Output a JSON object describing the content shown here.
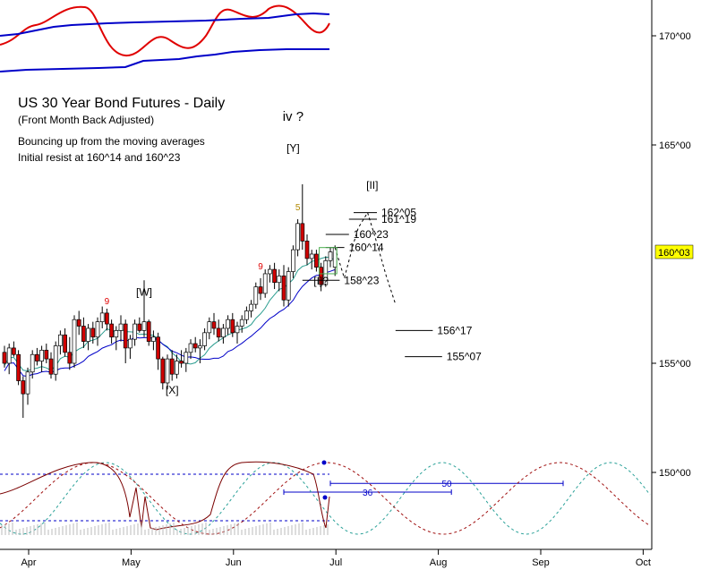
{
  "chart_data": {
    "type": "candlestick",
    "title": "US 30 Year Bond Futures - Daily",
    "subtitle": "(Front Month Back Adjusted)",
    "notes": [
      "Bouncing up from the moving averages",
      "Initial resist at 160^14 and 160^23"
    ],
    "y_axis": {
      "labels": [
        "170^00",
        "165^00",
        "155^00",
        "150^00"
      ],
      "values": [
        170,
        165,
        155,
        150
      ],
      "current_price_label": "160^03",
      "current_price": 160.09
    },
    "x_axis": {
      "labels": [
        "Apr",
        "May",
        "Jun",
        "Jul",
        "Aug",
        "Sep",
        "Oct"
      ],
      "values": [
        0,
        22,
        44,
        66,
        88,
        110,
        132
      ]
    },
    "wave_labels": [
      {
        "text": "iv ?",
        "x": 62,
        "y": 166.1
      },
      {
        "text": "[Y]",
        "x": 62,
        "y": 164.7
      },
      {
        "text": "[W]",
        "x": 30,
        "y": 158.1
      },
      {
        "text": "[X]",
        "x": 36,
        "y": 153.6
      },
      {
        "text": "[II]",
        "x": 79,
        "y": 163.0
      },
      {
        "text": "[I]?",
        "x": 68,
        "y": 158.6
      }
    ],
    "count_labels": [
      {
        "text": "9",
        "x": 22,
        "y": 157.7,
        "color": "#e00000"
      },
      {
        "text": "9",
        "x": 55,
        "y": 159.3,
        "color": "#e00000"
      },
      {
        "text": "5",
        "x": 63,
        "y": 162.0,
        "color": "#b08800"
      }
    ],
    "targets": [
      {
        "label": "162^05",
        "value": 161.9,
        "x1": 75,
        "x2": 80
      },
      {
        "label": "161^19",
        "value": 161.6,
        "x1": 74,
        "x2": 80
      },
      {
        "label": "160^23",
        "value": 160.9,
        "x1": 69,
        "x2": 74
      },
      {
        "label": "160^14",
        "value": 160.3,
        "x1": 69,
        "x2": 73
      },
      {
        "label": "158^23",
        "value": 158.8,
        "x1": 64,
        "x2": 72
      },
      {
        "label": "156^17",
        "value": 156.5,
        "x1": 84,
        "x2": 92
      },
      {
        "label": "155^07",
        "value": 155.3,
        "x1": 86,
        "x2": 94
      }
    ],
    "cycle_spans": [
      {
        "label": "36",
        "x1": 60,
        "x2": 96,
        "y": 149.1
      },
      {
        "label": "50",
        "x1": 70,
        "x2": 120,
        "y": 149.5
      }
    ],
    "candles": [
      [
        0,
        155.5,
        155.8,
        154.8,
        155.0
      ],
      [
        1,
        155.0,
        155.9,
        154.5,
        155.7
      ],
      [
        2,
        155.7,
        156.0,
        155.3,
        155.4
      ],
      [
        3,
        155.4,
        155.6,
        154.0,
        154.2
      ],
      [
        4,
        154.2,
        154.4,
        152.5,
        153.6
      ],
      [
        5,
        153.6,
        154.8,
        153.1,
        154.6
      ],
      [
        6,
        154.6,
        155.6,
        154.3,
        155.4
      ],
      [
        7,
        155.4,
        155.7,
        154.9,
        155.1
      ],
      [
        8,
        155.1,
        155.8,
        154.6,
        155.6
      ],
      [
        9,
        155.6,
        155.9,
        155.0,
        155.2
      ],
      [
        10,
        155.2,
        155.5,
        154.3,
        154.5
      ],
      [
        11,
        154.5,
        156.0,
        154.2,
        155.8
      ],
      [
        12,
        155.8,
        156.5,
        155.4,
        156.3
      ],
      [
        13,
        156.3,
        156.6,
        155.3,
        155.5
      ],
      [
        14,
        155.5,
        156.2,
        154.7,
        155.0
      ],
      [
        15,
        155.0,
        157.2,
        154.8,
        157.0
      ],
      [
        16,
        157.0,
        157.4,
        156.3,
        156.7
      ],
      [
        17,
        156.7,
        157.1,
        155.7,
        156.0
      ],
      [
        18,
        156.0,
        156.8,
        155.6,
        156.6
      ],
      [
        19,
        156.6,
        156.9,
        155.9,
        156.2
      ],
      [
        20,
        156.2,
        157.1,
        155.8,
        156.9
      ],
      [
        21,
        156.9,
        157.6,
        156.6,
        157.3
      ],
      [
        22,
        157.3,
        157.5,
        156.5,
        156.8
      ],
      [
        23,
        156.8,
        157.0,
        155.9,
        156.2
      ],
      [
        24,
        156.2,
        156.7,
        155.6,
        156.5
      ],
      [
        25,
        156.5,
        157.2,
        156.0,
        156.8
      ],
      [
        26,
        156.8,
        157.0,
        155.0,
        155.7
      ],
      [
        27,
        155.7,
        156.3,
        155.2,
        156.1
      ],
      [
        28,
        156.1,
        157.0,
        155.8,
        156.8
      ],
      [
        29,
        156.8,
        157.1,
        156.4,
        156.5
      ],
      [
        30,
        156.5,
        158.8,
        156.2,
        156.9
      ],
      [
        31,
        156.9,
        157.0,
        155.8,
        156.0
      ],
      [
        32,
        156.0,
        156.5,
        155.6,
        156.2
      ],
      [
        33,
        156.2,
        156.4,
        154.7,
        155.2
      ],
      [
        34,
        155.2,
        155.3,
        153.8,
        154.1
      ],
      [
        35,
        154.1,
        155.4,
        153.8,
        155.2
      ],
      [
        36,
        155.2,
        155.6,
        154.2,
        154.5
      ],
      [
        37,
        154.5,
        155.4,
        154.3,
        155.1
      ],
      [
        38,
        155.1,
        155.6,
        154.8,
        155.0
      ],
      [
        39,
        155.0,
        155.7,
        154.6,
        155.5
      ],
      [
        40,
        155.5,
        156.1,
        155.2,
        155.9
      ],
      [
        41,
        155.9,
        156.2,
        155.5,
        155.7
      ],
      [
        42,
        155.7,
        156.1,
        155.0,
        155.8
      ],
      [
        43,
        155.8,
        156.6,
        155.6,
        156.4
      ],
      [
        44,
        156.4,
        157.1,
        156.1,
        156.9
      ],
      [
        45,
        156.9,
        157.3,
        156.3,
        156.6
      ],
      [
        46,
        156.6,
        157.0,
        156.0,
        156.2
      ],
      [
        47,
        156.2,
        156.8,
        155.9,
        156.6
      ],
      [
        48,
        156.6,
        157.2,
        156.3,
        157.0
      ],
      [
        49,
        157.0,
        157.3,
        156.2,
        156.4
      ],
      [
        50,
        156.4,
        156.9,
        155.9,
        156.7
      ],
      [
        51,
        156.7,
        157.2,
        156.4,
        157.0
      ],
      [
        52,
        157.0,
        157.6,
        156.8,
        157.4
      ],
      [
        53,
        157.4,
        157.9,
        157.1,
        157.7
      ],
      [
        54,
        157.7,
        158.7,
        157.5,
        158.5
      ],
      [
        55,
        158.5,
        158.9,
        157.9,
        158.2
      ],
      [
        56,
        158.2,
        159.3,
        158.0,
        159.1
      ],
      [
        57,
        159.1,
        159.5,
        158.7,
        159.3
      ],
      [
        58,
        159.3,
        159.6,
        158.4,
        158.7
      ],
      [
        59,
        158.7,
        159.3,
        158.3,
        159.0
      ],
      [
        60,
        159.0,
        159.5,
        157.6,
        157.9
      ],
      [
        61,
        157.9,
        159.4,
        157.6,
        159.2
      ],
      [
        62,
        159.2,
        160.4,
        158.9,
        160.2
      ],
      [
        63,
        160.2,
        161.6,
        159.9,
        161.4
      ],
      [
        64,
        161.4,
        163.2,
        160.2,
        160.6
      ],
      [
        65,
        160.6,
        160.9,
        159.5,
        159.8
      ],
      [
        66,
        159.8,
        160.2,
        159.3,
        160.0
      ],
      [
        67,
        160.0,
        160.2,
        159.2,
        159.4
      ],
      [
        68,
        159.4,
        159.6,
        158.3,
        158.6
      ],
      [
        69,
        158.6,
        159.9,
        158.5,
        159.7
      ],
      [
        70,
        159.7,
        160.3,
        159.4,
        160.1
      ],
      [
        71,
        159.4,
        160.4,
        159.0,
        160.3
      ]
    ],
    "ylim": [
      146.5,
      172.5
    ],
    "xlim": [
      0,
      132
    ]
  }
}
